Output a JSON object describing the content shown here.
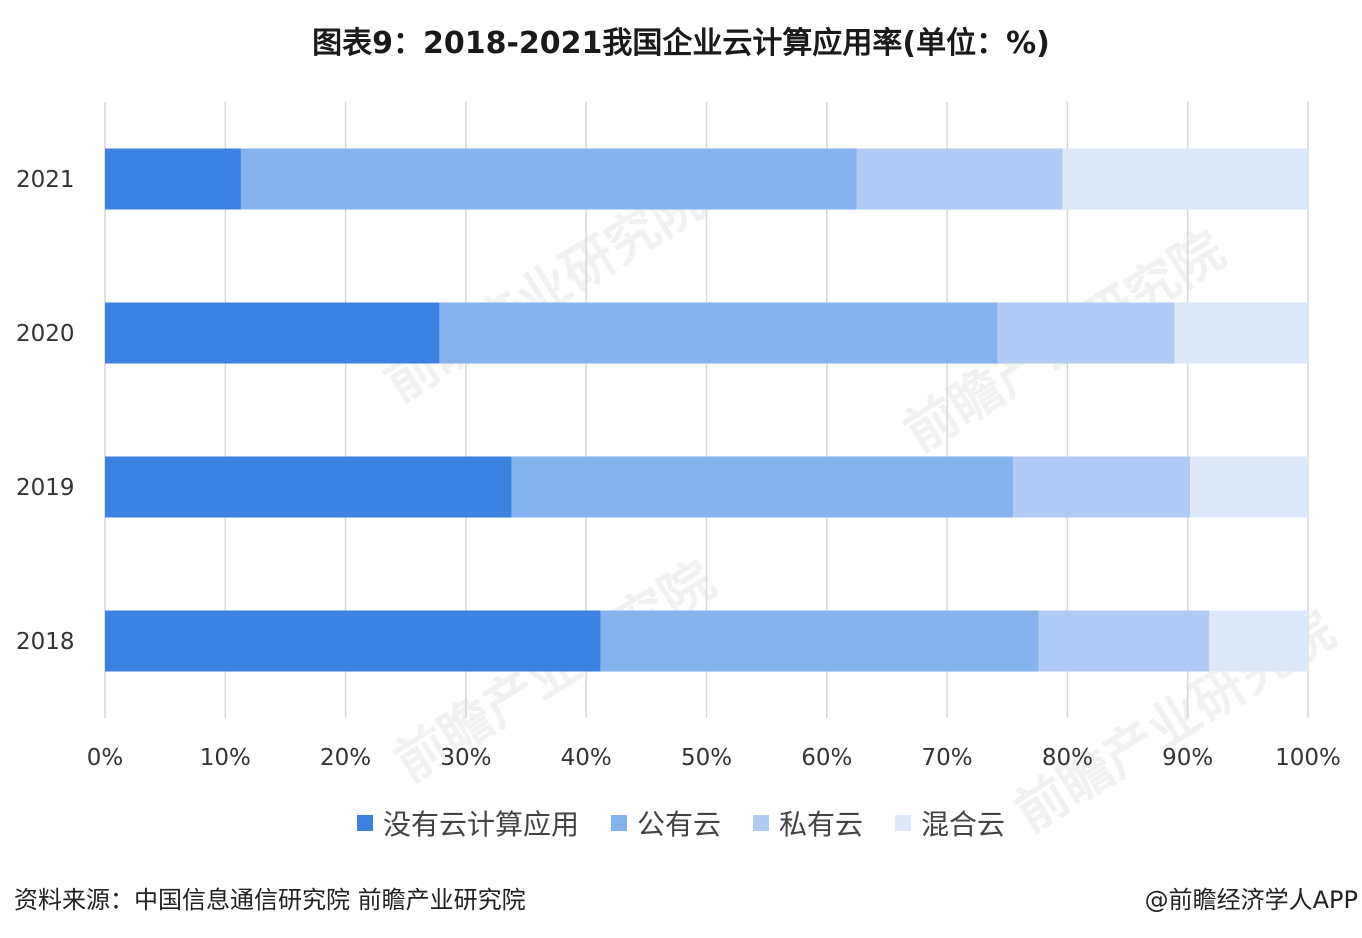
{
  "title": "图表9：2018-2021我国企业云计算应用率(单位：%)",
  "source": "资料来源：中国信息通信研究院 前瞻产业研究院",
  "brand": "@前瞻经济学人APP",
  "watermark": "前瞻产业研究院",
  "colors": {
    "none": "#3b82e0",
    "public": "#86b2ee",
    "private": "#b0ccf4",
    "hybrid": "#dde9fa",
    "grid": "#d9d9d9"
  },
  "chart_data": {
    "type": "bar",
    "orientation": "horizontal",
    "stacked": true,
    "title": "图表9：2018-2021我国企业云计算应用率(单位：%)",
    "categories": [
      "2021",
      "2020",
      "2019",
      "2018"
    ],
    "x_ticks": [
      "0%",
      "10%",
      "20%",
      "30%",
      "40%",
      "50%",
      "60%",
      "70%",
      "80%",
      "90%",
      "100%"
    ],
    "xlim": [
      0,
      100
    ],
    "grid": true,
    "legend_position": "bottom",
    "series": [
      {
        "name": "没有云计算应用",
        "values": [
          11.3,
          27.8,
          33.8,
          41.2
        ]
      },
      {
        "name": "公有云",
        "values": [
          51.2,
          46.4,
          41.7,
          36.4
        ]
      },
      {
        "name": "私有云",
        "values": [
          17.1,
          14.7,
          14.7,
          14.2
        ]
      },
      {
        "name": "混合云",
        "values": [
          20.4,
          11.1,
          9.8,
          8.2
        ]
      }
    ]
  }
}
